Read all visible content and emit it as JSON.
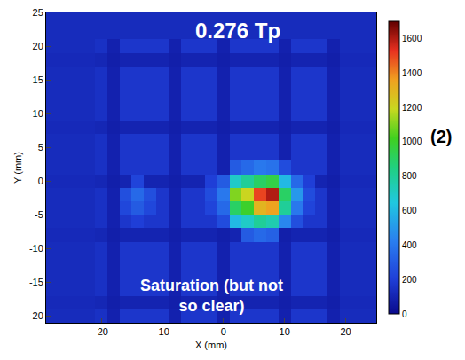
{
  "chart_data": {
    "type": "heatmap",
    "annotations": [
      "0.276 Tp",
      "Saturation (but not so clear)",
      "(2)"
    ],
    "x_label": "X (mm)",
    "y_label": "Y (mm)",
    "x": [
      -28,
      -26,
      -24,
      -22,
      -20,
      -18,
      -16,
      -14,
      -12,
      -10,
      -8,
      -6,
      -4,
      -2,
      0,
      2,
      4,
      6,
      8,
      10,
      12,
      14,
      16,
      18,
      20,
      22,
      24
    ],
    "y": [
      -20,
      -18,
      -16,
      -14,
      -12,
      -10,
      -8,
      -6,
      -4,
      -2,
      0,
      2,
      4,
      6,
      8,
      10,
      12,
      14,
      16,
      18,
      20,
      22,
      24
    ],
    "z": [
      [
        130,
        130,
        130,
        130,
        150,
        90,
        170,
        170,
        170,
        170,
        90,
        170,
        170,
        170,
        90,
        170,
        170,
        170,
        170,
        90,
        170,
        170,
        170,
        90,
        130,
        130,
        130
      ],
      [
        120,
        120,
        120,
        120,
        110,
        80,
        100,
        100,
        100,
        100,
        80,
        100,
        100,
        100,
        80,
        100,
        100,
        100,
        100,
        80,
        100,
        100,
        100,
        80,
        120,
        120,
        120
      ],
      [
        130,
        130,
        130,
        130,
        150,
        90,
        170,
        170,
        170,
        170,
        90,
        170,
        170,
        170,
        90,
        170,
        170,
        170,
        170,
        90,
        170,
        170,
        170,
        90,
        130,
        130,
        130
      ],
      [
        130,
        130,
        130,
        130,
        150,
        90,
        170,
        170,
        170,
        170,
        90,
        170,
        170,
        170,
        90,
        170,
        170,
        170,
        170,
        90,
        170,
        170,
        170,
        90,
        130,
        130,
        130
      ],
      [
        130,
        130,
        130,
        130,
        150,
        90,
        170,
        170,
        170,
        170,
        90,
        170,
        170,
        170,
        90,
        170,
        170,
        170,
        170,
        90,
        170,
        170,
        170,
        90,
        130,
        130,
        130
      ],
      [
        130,
        130,
        130,
        130,
        150,
        90,
        170,
        170,
        170,
        170,
        90,
        170,
        170,
        170,
        90,
        170,
        170,
        170,
        170,
        90,
        170,
        170,
        170,
        90,
        130,
        130,
        130
      ],
      [
        120,
        120,
        120,
        120,
        110,
        80,
        100,
        100,
        100,
        100,
        80,
        100,
        100,
        100,
        80,
        100,
        300,
        350,
        320,
        80,
        100,
        100,
        100,
        80,
        120,
        120,
        120
      ],
      [
        130,
        130,
        130,
        130,
        150,
        90,
        170,
        200,
        170,
        170,
        90,
        170,
        170,
        170,
        250,
        600,
        700,
        800,
        750,
        450,
        260,
        170,
        170,
        90,
        130,
        130,
        130
      ],
      [
        130,
        130,
        130,
        130,
        150,
        90,
        230,
        300,
        230,
        170,
        90,
        170,
        170,
        220,
        350,
        900,
        1000,
        1300,
        1350,
        800,
        400,
        220,
        170,
        90,
        130,
        130,
        130
      ],
      [
        130,
        130,
        130,
        130,
        150,
        90,
        260,
        350,
        260,
        170,
        90,
        170,
        170,
        250,
        400,
        1100,
        1200,
        1500,
        1600,
        900,
        500,
        250,
        170,
        90,
        130,
        130,
        130
      ],
      [
        120,
        120,
        120,
        120,
        110,
        80,
        100,
        220,
        100,
        100,
        80,
        100,
        100,
        200,
        300,
        700,
        800,
        900,
        950,
        600,
        350,
        200,
        100,
        80,
        120,
        120,
        120
      ],
      [
        130,
        130,
        130,
        130,
        150,
        90,
        170,
        170,
        170,
        170,
        90,
        170,
        170,
        170,
        90,
        300,
        350,
        400,
        380,
        250,
        170,
        170,
        170,
        90,
        130,
        130,
        130
      ],
      [
        130,
        130,
        130,
        130,
        150,
        90,
        170,
        170,
        170,
        170,
        90,
        170,
        170,
        170,
        90,
        170,
        170,
        170,
        170,
        90,
        170,
        170,
        170,
        90,
        130,
        130,
        130
      ],
      [
        130,
        130,
        130,
        130,
        150,
        90,
        170,
        170,
        170,
        170,
        90,
        170,
        170,
        170,
        90,
        170,
        170,
        170,
        170,
        90,
        170,
        170,
        170,
        90,
        130,
        130,
        130
      ],
      [
        120,
        120,
        120,
        120,
        110,
        80,
        100,
        100,
        100,
        100,
        80,
        100,
        100,
        100,
        80,
        100,
        100,
        100,
        100,
        80,
        100,
        100,
        100,
        80,
        120,
        120,
        120
      ],
      [
        130,
        130,
        130,
        130,
        150,
        90,
        170,
        170,
        170,
        170,
        90,
        170,
        170,
        170,
        90,
        170,
        170,
        170,
        170,
        90,
        170,
        170,
        170,
        90,
        130,
        130,
        130
      ],
      [
        130,
        130,
        130,
        130,
        150,
        90,
        170,
        170,
        170,
        170,
        90,
        170,
        170,
        170,
        90,
        170,
        170,
        170,
        170,
        90,
        170,
        170,
        170,
        90,
        130,
        130,
        130
      ],
      [
        130,
        130,
        130,
        130,
        150,
        90,
        170,
        170,
        170,
        170,
        90,
        170,
        170,
        170,
        90,
        170,
        170,
        170,
        170,
        90,
        170,
        170,
        170,
        90,
        130,
        130,
        130
      ],
      [
        130,
        130,
        130,
        130,
        150,
        90,
        170,
        170,
        170,
        170,
        90,
        170,
        170,
        170,
        90,
        170,
        170,
        170,
        170,
        90,
        170,
        170,
        170,
        90,
        130,
        130,
        130
      ],
      [
        120,
        120,
        120,
        120,
        110,
        80,
        100,
        100,
        100,
        100,
        80,
        100,
        100,
        100,
        80,
        100,
        100,
        100,
        100,
        80,
        100,
        100,
        100,
        80,
        120,
        120,
        120
      ],
      [
        130,
        130,
        130,
        130,
        150,
        90,
        170,
        170,
        170,
        170,
        90,
        170,
        170,
        170,
        90,
        170,
        170,
        170,
        170,
        90,
        170,
        170,
        170,
        90,
        130,
        130,
        130
      ],
      [
        130,
        130,
        130,
        130,
        130,
        130,
        130,
        130,
        130,
        130,
        130,
        130,
        130,
        130,
        130,
        130,
        130,
        130,
        130,
        130,
        130,
        130,
        130,
        130,
        130,
        130,
        130
      ],
      [
        130,
        130,
        130,
        130,
        130,
        130,
        130,
        130,
        130,
        130,
        130,
        130,
        130,
        130,
        130,
        130,
        130,
        130,
        130,
        130,
        130,
        130,
        130,
        130,
        130,
        130,
        130
      ]
    ],
    "xlim": [
      -29,
      25
    ],
    "ylim": [
      -21,
      25
    ],
    "xticks": [
      -20,
      -10,
      0,
      10,
      20
    ],
    "yticks": [
      -20,
      -15,
      -10,
      -5,
      0,
      5,
      10,
      15,
      20,
      25
    ],
    "colorbar_range": [
      0,
      1700
    ],
    "colorbar_ticks": [
      0,
      200,
      400,
      600,
      800,
      1000,
      1200,
      1400,
      1600
    ]
  }
}
